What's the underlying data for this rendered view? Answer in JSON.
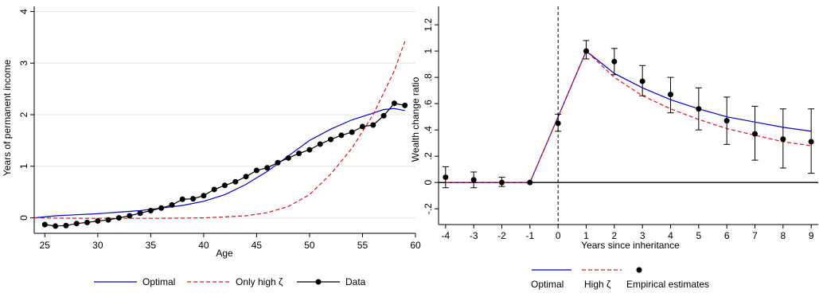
{
  "chart_data": [
    {
      "type": "line",
      "xlabel": "Age",
      "ylabel": "Years of permanent income",
      "xlim": [
        24,
        60
      ],
      "ylim": [
        -0.3,
        4.1
      ],
      "xticks": [
        25,
        30,
        35,
        40,
        45,
        50,
        55,
        60
      ],
      "yticks": [
        0,
        1,
        2,
        3,
        4
      ],
      "grid": "horizontal",
      "legend_position": "bottom",
      "series": [
        {
          "name": "Optimal",
          "style": "solid",
          "color": "#0000cc",
          "x": [
            24,
            26,
            28,
            30,
            32,
            34,
            36,
            38,
            40,
            42,
            44,
            46,
            48,
            50,
            52,
            54,
            56,
            57,
            58,
            59
          ],
          "y": [
            0.0,
            0.04,
            0.06,
            0.08,
            0.11,
            0.14,
            0.19,
            0.24,
            0.32,
            0.45,
            0.65,
            0.9,
            1.2,
            1.5,
            1.72,
            1.9,
            2.03,
            2.1,
            2.12,
            2.08
          ]
        },
        {
          "name": "Only high ζ",
          "style": "dashed",
          "color": "#e8101a",
          "x": [
            24,
            28,
            32,
            36,
            40,
            42,
            44,
            46,
            48,
            50,
            52,
            54,
            56,
            58,
            59
          ],
          "y": [
            0.0,
            -0.01,
            -0.01,
            -0.01,
            0.0,
            0.02,
            0.04,
            0.1,
            0.22,
            0.45,
            0.85,
            1.35,
            2.0,
            2.85,
            3.42
          ]
        },
        {
          "name": "Data",
          "style": "solid-markers",
          "color": "#000000",
          "x": [
            25,
            26,
            27,
            28,
            29,
            30,
            31,
            32,
            33,
            34,
            35,
            36,
            37,
            38,
            39,
            40,
            41,
            42,
            43,
            44,
            45,
            46,
            47,
            48,
            49,
            50,
            51,
            52,
            53,
            54,
            55,
            56,
            57,
            58,
            59
          ],
          "y": [
            -0.13,
            -0.16,
            -0.15,
            -0.11,
            -0.09,
            -0.06,
            -0.04,
            0.0,
            0.04,
            0.09,
            0.14,
            0.19,
            0.25,
            0.36,
            0.37,
            0.43,
            0.55,
            0.63,
            0.7,
            0.8,
            0.92,
            0.97,
            1.07,
            1.16,
            1.25,
            1.32,
            1.43,
            1.52,
            1.6,
            1.66,
            1.77,
            1.8,
            1.98,
            2.22,
            2.18
          ]
        }
      ]
    },
    {
      "type": "line",
      "xlabel": "Years since inheritance",
      "ylabel": "Wealth change ratio",
      "xlim": [
        -4.25,
        9.25
      ],
      "ylim": [
        -0.32,
        1.34
      ],
      "xticks": [
        -4,
        -3,
        -2,
        -1,
        0,
        1,
        2,
        3,
        4,
        5,
        6,
        7,
        8,
        9
      ],
      "yticks": [
        -0.2,
        0,
        0.2,
        0.4,
        0.6,
        0.8,
        1,
        1.2
      ],
      "ytick_labels": [
        "-.2",
        "0",
        ".2",
        ".4",
        ".6",
        ".8",
        "1",
        "1.2"
      ],
      "vline_x": 0,
      "hline_y": 0,
      "legend_position": "bottom",
      "series": [
        {
          "name": "Optimal",
          "style": "solid",
          "color": "#0000cc",
          "x": [
            -4,
            -3,
            -2,
            -1,
            0,
            1,
            2,
            3,
            4,
            5,
            6,
            7,
            8,
            9
          ],
          "y": [
            0,
            0,
            0,
            0,
            0.5,
            1.0,
            0.83,
            0.72,
            0.63,
            0.56,
            0.5,
            0.46,
            0.42,
            0.39
          ]
        },
        {
          "name": "High ζ",
          "style": "dashed",
          "color": "#e8101a",
          "x": [
            -4,
            -3,
            -2,
            -1,
            0,
            1,
            2,
            3,
            4,
            5,
            6,
            7,
            8,
            9
          ],
          "y": [
            0,
            0,
            0,
            0,
            0.5,
            1.0,
            0.8,
            0.66,
            0.56,
            0.48,
            0.41,
            0.36,
            0.31,
            0.28
          ]
        },
        {
          "name": "Empirical estimates",
          "style": "points-errorbars",
          "color": "#000000",
          "x": [
            -4,
            -3,
            -2,
            -1,
            0,
            1,
            2,
            3,
            4,
            5,
            6,
            7,
            8,
            9
          ],
          "y": [
            0.04,
            0.02,
            0.0,
            0.0,
            0.45,
            1.0,
            0.92,
            0.77,
            0.67,
            0.56,
            0.47,
            0.37,
            0.33,
            0.31
          ],
          "lower": [
            -0.04,
            -0.04,
            -0.03,
            0.0,
            0.39,
            0.94,
            0.82,
            0.66,
            0.53,
            0.4,
            0.29,
            0.17,
            0.11,
            0.07
          ],
          "upper": [
            0.12,
            0.08,
            0.04,
            0.0,
            0.52,
            1.08,
            1.02,
            0.89,
            0.8,
            0.72,
            0.65,
            0.58,
            0.56,
            0.56
          ]
        }
      ]
    }
  ]
}
